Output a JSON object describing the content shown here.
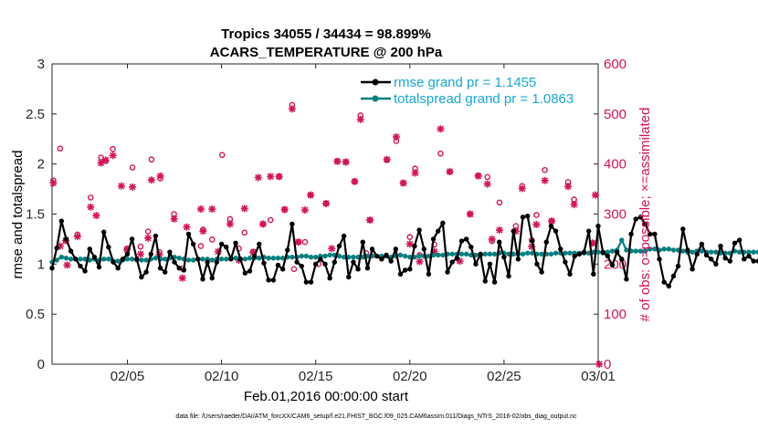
{
  "chart_data": {
    "type": "line",
    "title": [
      "Tropics 34055 / 34434 = 98.899%",
      "ACARS_TEMPERATURE @ 200 hPa"
    ],
    "xlabel": "Feb.01,2016 00:00:00 start",
    "ylabel": "rmse and totalspread",
    "ylabel_right": "# of obs: o=possible; ×=assimilated",
    "footer": "data file: /Users/raeder/DAI/ATM_forcXX/CAM6_setup/f.e21.FHIST_BGC.f09_025.CAM6assim.011/Diags_NTrS_2016-02/obs_diag_output.nc",
    "x_range_days": [
      1.0,
      30.0
    ],
    "x_ticks": [
      {
        "day": 5,
        "label": "02/05"
      },
      {
        "day": 10,
        "label": "02/10"
      },
      {
        "day": 15,
        "label": "02/15"
      },
      {
        "day": 20,
        "label": "02/20"
      },
      {
        "day": 25,
        "label": "02/25"
      },
      {
        "day": 30,
        "label": "03/01"
      }
    ],
    "ylim": [
      0,
      3
    ],
    "y_ticks": [
      "0",
      "0.5",
      "1",
      "1.5",
      "2",
      "2.5",
      "3"
    ],
    "ylim_right": [
      0,
      600
    ],
    "y_ticks_right": [
      "0",
      "100",
      "200",
      "300",
      "400",
      "500",
      "600"
    ],
    "legend": [
      {
        "label": "rmse grand pr = 1.1455",
        "color": "#000000"
      },
      {
        "label": "totalspread grand pr = 1.0863",
        "color": "#008080"
      }
    ],
    "legend_position": "top-right",
    "time_start_day": 1.0,
    "time_step_days": 0.25,
    "series": [
      {
        "name": "rmse",
        "color": "#000000",
        "values": [
          0.96,
          1.16,
          1.43,
          1.25,
          1.13,
          1.05,
          0.98,
          0.93,
          1.15,
          1.07,
          0.97,
          1.32,
          1.17,
          1.02,
          0.96,
          1.05,
          1.1,
          1.25,
          1.05,
          0.87,
          0.92,
          1.1,
          1.28,
          0.96,
          0.92,
          1.12,
          1.02,
          0.96,
          0.94,
          1.3,
          1.2,
          1.05,
          0.85,
          1.02,
          0.86,
          1.02,
          1.2,
          1.17,
          1.05,
          1.21,
          1.05,
          0.91,
          0.93,
          1.08,
          1.2,
          1.01,
          0.84,
          0.84,
          0.99,
          0.95,
          1.14,
          1.4,
          1.02,
          0.98,
          0.82,
          0.82,
          1.0,
          1.05,
          1.0,
          0.86,
          1.02,
          1.18,
          1.28,
          0.87,
          1.02,
          0.95,
          1.22,
          0.96,
          1.15,
          1.08,
          1.05,
          1.09,
          1.03,
          1.15,
          0.9,
          0.94,
          0.95,
          1.18,
          1.34,
          1.15,
          0.9,
          1.25,
          1.33,
          1.41,
          0.92,
          1.02,
          1.06,
          1.23,
          1.25,
          1.17,
          1.0,
          1.1,
          0.83,
          1.0,
          0.82,
          1.22,
          1.07,
          0.88,
          1.33,
          1.05,
          1.47,
          1.48,
          1.23,
          1.0,
          0.92,
          1.22,
          1.38,
          1.33,
          1.15,
          1.02,
          0.9,
          1.08,
          1.1,
          1.12,
          1.33,
          0.9,
          1.38,
          1.12,
          1.08,
          0.99,
          1.12,
          1.05,
          0.85,
          1.3,
          1.45,
          1.47,
          1.4,
          1.3,
          1.3,
          1.05,
          0.82,
          0.78,
          0.88,
          0.98,
          1.35,
          1.14,
          0.95,
          1.1,
          1.2,
          1.09,
          1.05,
          1.0,
          1.18,
          1.06,
          1.03,
          1.21,
          1.24,
          1.05,
          1.08,
          1.03,
          1.03,
          1.02,
          1.26,
          1.09,
          1.09,
          0.95,
          0.9,
          0.85,
          1.04,
          1.0,
          0.8,
          0.76,
          1.0,
          1.2,
          1.03,
          1.16,
          1.0,
          0.93,
          1.55,
          0.93,
          1.06,
          1.21,
          1.0,
          1.05,
          1.1,
          1.02,
          1.06,
          1.23,
          1.0,
          0.88
        ]
      },
      {
        "name": "totalspread",
        "color": "#008080",
        "values": [
          1.02,
          1.04,
          1.07,
          1.06,
          1.05,
          1.05,
          1.05,
          1.05,
          1.04,
          1.05,
          1.04,
          1.05,
          1.05,
          1.03,
          1.03,
          1.04,
          1.05,
          1.05,
          1.04,
          1.04,
          1.04,
          1.05,
          1.06,
          1.05,
          1.05,
          1.06,
          1.07,
          1.06,
          1.05,
          1.04,
          1.04,
          1.05,
          1.05,
          1.05,
          1.04,
          1.05,
          1.05,
          1.05,
          1.06,
          1.06,
          1.05,
          1.05,
          1.06,
          1.06,
          1.06,
          1.07,
          1.06,
          1.06,
          1.06,
          1.06,
          1.07,
          1.07,
          1.07,
          1.08,
          1.08,
          1.07,
          1.07,
          1.08,
          1.08,
          1.09,
          1.09,
          1.08,
          1.07,
          1.07,
          1.07,
          1.07,
          1.07,
          1.08,
          1.08,
          1.08,
          1.08,
          1.08,
          1.07,
          1.08,
          1.09,
          1.08,
          1.07,
          1.07,
          1.08,
          1.08,
          1.08,
          1.09,
          1.09,
          1.09,
          1.1,
          1.1,
          1.1,
          1.1,
          1.1,
          1.09,
          1.09,
          1.09,
          1.1,
          1.1,
          1.1,
          1.11,
          1.11,
          1.1,
          1.1,
          1.1,
          1.1,
          1.11,
          1.11,
          1.1,
          1.1,
          1.1,
          1.1,
          1.11,
          1.11,
          1.11,
          1.11,
          1.11,
          1.11,
          1.11,
          1.11,
          1.12,
          1.12,
          1.11,
          1.12,
          1.13,
          1.14,
          1.24,
          1.14,
          1.13,
          1.13,
          1.13,
          1.13,
          1.15,
          1.15,
          1.14,
          1.15,
          1.15,
          1.14,
          1.14,
          1.13,
          1.12,
          1.12,
          1.13,
          1.13,
          1.12,
          1.12,
          1.12,
          1.11,
          1.11,
          1.11,
          1.13,
          1.12,
          1.12,
          1.12,
          1.12,
          1.12,
          1.11,
          1.11,
          1.11,
          1.11,
          1.11,
          1.1,
          1.11,
          1.11,
          1.11,
          1.11,
          1.11,
          1.11,
          1.13,
          1.14,
          1.15,
          1.14,
          1.15,
          1.13,
          1.13,
          1.14,
          1.14,
          1.12,
          1.12,
          1.12,
          1.12,
          1.11,
          1.1,
          1.11,
          1.12
        ]
      }
    ],
    "obs_possible": {
      "marker": "o",
      "color": "#d6135a",
      "points": [
        [
          1.07,
          367
        ],
        [
          1.43,
          431
        ],
        [
          1.73,
          247
        ],
        [
          2.35,
          259
        ],
        [
          3.05,
          333
        ],
        [
          3.6,
          413
        ],
        [
          3.85,
          406
        ],
        [
          4.23,
          430
        ],
        [
          4.98,
          231
        ],
        [
          5.27,
          393
        ],
        [
          5.7,
          235
        ],
        [
          6.1,
          265
        ],
        [
          6.28,
          409
        ],
        [
          6.7,
          224
        ],
        [
          6.75,
          371
        ],
        [
          7.48,
          300
        ],
        [
          7.92,
          191
        ],
        [
          8.9,
          236
        ],
        [
          9.02,
          269
        ],
        [
          9.5,
          249
        ],
        [
          10.03,
          418
        ],
        [
          10.45,
          290
        ],
        [
          10.92,
          231
        ],
        [
          11.22,
          263
        ],
        [
          11.68,
          225
        ],
        [
          12.2,
          280
        ],
        [
          12.6,
          288
        ],
        [
          13.06,
          375
        ],
        [
          13.35,
          309
        ],
        [
          13.75,
          518
        ],
        [
          13.85,
          190
        ],
        [
          14.08,
          244
        ],
        [
          14.43,
          244
        ],
        [
          14.73,
          338
        ],
        [
          15.15,
          200
        ],
        [
          15.55,
          321
        ],
        [
          16.15,
          406
        ],
        [
          16.6,
          404
        ],
        [
          17.07,
          365
        ],
        [
          17.38,
          497
        ],
        [
          17.68,
          222
        ],
        [
          17.88,
          288
        ],
        [
          18.78,
          408
        ],
        [
          19.28,
          446
        ],
        [
          19.65,
          362
        ],
        [
          20.0,
          254
        ],
        [
          20.28,
          391
        ],
        [
          20.52,
          218
        ],
        [
          20.88,
          543
        ],
        [
          21.3,
          239
        ],
        [
          21.63,
          421
        ],
        [
          22.12,
          384
        ],
        [
          23.2,
          300
        ],
        [
          23.63,
          377
        ],
        [
          24.12,
          374
        ],
        [
          24.36,
          246
        ],
        [
          24.76,
          323
        ],
        [
          25.63,
          276
        ],
        [
          25.96,
          356
        ],
        [
          26.47,
          248
        ],
        [
          26.72,
          298
        ],
        [
          27.17,
          388
        ],
        [
          27.53,
          286
        ],
        [
          28.4,
          364
        ],
        [
          28.72,
          329
        ],
        [
          29.7,
          242
        ]
      ]
    },
    "obs_assimilated": {
      "marker": "x",
      "color": "#d6135a",
      "points": [
        [
          1.07,
          362
        ],
        [
          1.43,
          236
        ],
        [
          1.73,
          247
        ],
        [
          1.8,
          198
        ],
        [
          2.35,
          255
        ],
        [
          3.05,
          314
        ],
        [
          3.35,
          297
        ],
        [
          3.6,
          402
        ],
        [
          3.85,
          408
        ],
        [
          4.23,
          417
        ],
        [
          4.68,
          356
        ],
        [
          4.98,
          229
        ],
        [
          5.27,
          354
        ],
        [
          5.7,
          220
        ],
        [
          6.1,
          252
        ],
        [
          6.28,
          368
        ],
        [
          6.7,
          219
        ],
        [
          6.75,
          376
        ],
        [
          7.48,
          290
        ],
        [
          7.92,
          172
        ],
        [
          8.15,
          274
        ],
        [
          8.9,
          310
        ],
        [
          9.02,
          266
        ],
        [
          9.5,
          310
        ],
        [
          9.82,
          225
        ],
        [
          10.45,
          280
        ],
        [
          10.92,
          208
        ],
        [
          11.22,
          311
        ],
        [
          11.68,
          223
        ],
        [
          11.95,
          373
        ],
        [
          12.2,
          280
        ],
        [
          12.6,
          375
        ],
        [
          13.06,
          375
        ],
        [
          13.35,
          309
        ],
        [
          13.75,
          510
        ],
        [
          14.08,
          244
        ],
        [
          14.43,
          308
        ],
        [
          14.73,
          338
        ],
        [
          15.55,
          321
        ],
        [
          15.85,
          231
        ],
        [
          16.15,
          405
        ],
        [
          16.6,
          404
        ],
        [
          17.07,
          365
        ],
        [
          17.38,
          489
        ],
        [
          17.88,
          288
        ],
        [
          18.78,
          409
        ],
        [
          19.28,
          454
        ],
        [
          19.65,
          362
        ],
        [
          20.0,
          240
        ],
        [
          20.28,
          382
        ],
        [
          20.52,
          205
        ],
        [
          20.88,
          529
        ],
        [
          21.3,
          225
        ],
        [
          21.63,
          470
        ],
        [
          22.12,
          385
        ],
        [
          22.65,
          206
        ],
        [
          23.2,
          300
        ],
        [
          23.63,
          376
        ],
        [
          24.12,
          360
        ],
        [
          24.36,
          250
        ],
        [
          24.76,
          268
        ],
        [
          25.63,
          266
        ],
        [
          25.96,
          351
        ],
        [
          26.47,
          235
        ],
        [
          26.72,
          279
        ],
        [
          27.17,
          367
        ],
        [
          27.53,
          286
        ],
        [
          28.4,
          355
        ],
        [
          28.72,
          319
        ],
        [
          29.7,
          242
        ],
        [
          29.85,
          338
        ],
        [
          30.05,
          0
        ]
      ]
    }
  }
}
